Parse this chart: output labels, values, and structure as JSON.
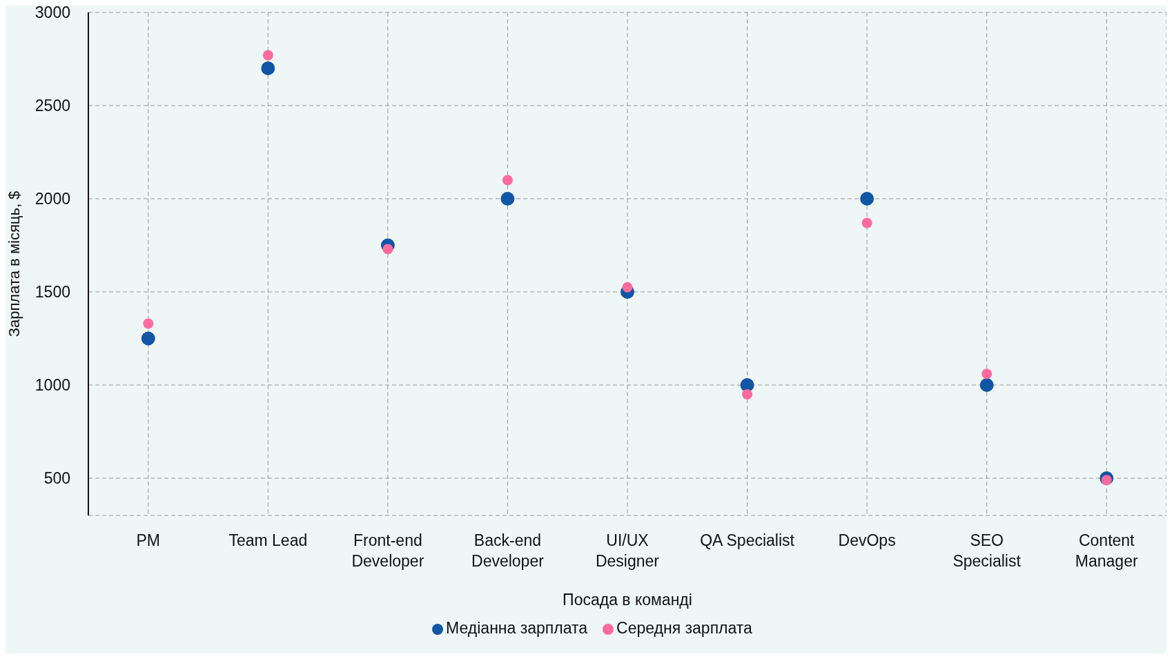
{
  "chart_data": {
    "type": "scatter",
    "xlabel": "Посада в команді",
    "ylabel": "Зарплата в місяць, $",
    "categories": [
      "PM",
      "Team Lead",
      "Front-end Developer",
      "Back-end Developer",
      "UI/UX Designer",
      "QA Specialist",
      "DevOps",
      "SEO Specialist",
      "Content Manager"
    ],
    "series": [
      {
        "name": "Медіанна зарплата",
        "color": "#1155a5",
        "values": [
          1250,
          2700,
          1750,
          2000,
          1500,
          1000,
          2000,
          1000,
          500
        ]
      },
      {
        "name": "Середня зарплата",
        "color": "#ff6b9e",
        "values": [
          1330,
          2770,
          1730,
          2100,
          1525,
          950,
          1870,
          1060,
          490
        ]
      }
    ],
    "ylim": [
      300,
      3000
    ],
    "yticks": [
      500,
      1000,
      1500,
      2000,
      2500,
      3000
    ],
    "grid": true,
    "legend": "bottom",
    "marker": "circle"
  }
}
